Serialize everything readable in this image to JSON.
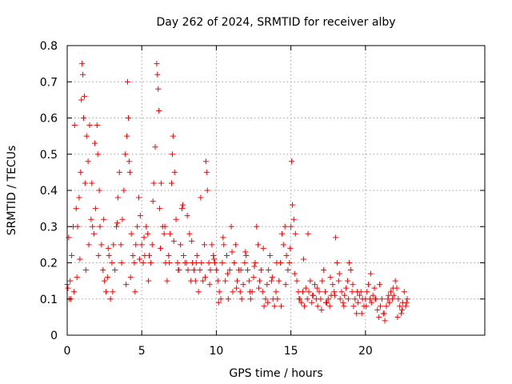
{
  "chart_data": {
    "type": "scatter",
    "title": "Day 262 of 2024, SRMTID for receiver alby",
    "xlabel": "GPS time / hours",
    "ylabel": "SRMTID / TECUs",
    "xlim": [
      0,
      28
    ],
    "ylim": [
      0,
      0.8
    ],
    "xticks": [
      0,
      5,
      10,
      15,
      20
    ],
    "xtick_labels": [
      "0",
      "5",
      "10",
      "15",
      "20"
    ],
    "yticks": [
      0,
      0.1,
      0.2,
      0.3,
      0.4,
      0.5,
      0.6,
      0.7,
      0.8
    ],
    "ytick_labels": [
      "0",
      "0.1",
      "0.2",
      "0.3",
      "0.4",
      "0.5",
      "0.6",
      "0.7",
      "0.8"
    ],
    "grid": true,
    "marker": "+",
    "color": "#ff0000",
    "series": [
      {
        "name": "SRMTID",
        "x": [
          0.0,
          0.1,
          0.15,
          0.2,
          0.3,
          0.4,
          0.5,
          0.6,
          0.7,
          0.8,
          0.9,
          0.95,
          1.0,
          1.05,
          1.1,
          1.15,
          1.2,
          1.3,
          1.4,
          1.5,
          1.6,
          1.7,
          1.8,
          1.9,
          2.0,
          2.05,
          2.1,
          2.2,
          2.3,
          2.4,
          2.5,
          2.6,
          2.7,
          2.8,
          2.9,
          3.0,
          3.1,
          3.2,
          3.3,
          3.4,
          3.5,
          3.6,
          3.7,
          3.8,
          3.9,
          4.0,
          4.05,
          4.1,
          4.15,
          4.2,
          4.3,
          4.4,
          4.5,
          4.6,
          4.7,
          4.8,
          4.9,
          5.0,
          5.1,
          5.2,
          5.3,
          5.4,
          5.5,
          5.6,
          5.7,
          5.8,
          5.9,
          6.0,
          6.05,
          6.1,
          6.15,
          6.2,
          6.3,
          6.4,
          6.5,
          6.6,
          6.7,
          6.8,
          6.9,
          7.0,
          7.05,
          7.1,
          7.2,
          7.3,
          7.4,
          7.5,
          7.6,
          7.7,
          7.8,
          7.9,
          8.0,
          8.1,
          8.2,
          8.3,
          8.4,
          8.5,
          8.6,
          8.7,
          8.8,
          8.9,
          9.0,
          9.1,
          9.2,
          9.3,
          9.35,
          9.4,
          9.5,
          9.6,
          9.7,
          9.8,
          9.9,
          10.0,
          10.1,
          10.2,
          10.3,
          10.4,
          10.5,
          10.6,
          10.7,
          10.8,
          10.9,
          11.0,
          11.1,
          11.2,
          11.3,
          11.4,
          11.5,
          11.6,
          11.7,
          11.8,
          11.9,
          12.0,
          12.1,
          12.2,
          12.3,
          12.4,
          12.5,
          12.6,
          12.7,
          12.8,
          12.9,
          13.0,
          13.1,
          13.2,
          13.3,
          13.4,
          13.5,
          13.6,
          13.7,
          13.8,
          13.9,
          14.0,
          14.1,
          14.2,
          14.3,
          14.4,
          14.5,
          14.6,
          14.7,
          14.8,
          14.9,
          14.95,
          15.0,
          15.05,
          15.1,
          15.2,
          15.3,
          15.4,
          15.5,
          15.6,
          15.7,
          15.8,
          15.9,
          16.0,
          16.1,
          16.2,
          16.3,
          16.4,
          16.5,
          16.6,
          16.7,
          16.8,
          16.9,
          17.0,
          17.1,
          17.2,
          17.3,
          17.4,
          17.5,
          17.6,
          17.7,
          17.8,
          17.9,
          18.0,
          18.1,
          18.2,
          18.3,
          18.4,
          18.5,
          18.6,
          18.7,
          18.8,
          18.9,
          19.0,
          19.1,
          19.2,
          19.3,
          19.4,
          19.5,
          19.6,
          19.7,
          19.8,
          19.9,
          20.0,
          20.1,
          20.2,
          20.3,
          20.4,
          20.5,
          20.6,
          20.7,
          20.8,
          20.9,
          21.0,
          21.1,
          21.2,
          21.3,
          21.4,
          21.5,
          21.6,
          21.7,
          21.8,
          21.9,
          22.0,
          22.1,
          22.2,
          22.3,
          22.4,
          22.5,
          22.6,
          22.7,
          22.8,
          0.05,
          0.25,
          0.45,
          0.65,
          0.85,
          1.25,
          1.45,
          1.65,
          1.85,
          2.15,
          2.45,
          2.75,
          3.05,
          3.35,
          3.65,
          3.95,
          4.25,
          4.55,
          4.85,
          5.15,
          5.45,
          5.75,
          6.25,
          6.55,
          6.85,
          7.15,
          7.45,
          7.75,
          8.05,
          8.35,
          8.65,
          8.95,
          9.25,
          9.55,
          9.85,
          10.15,
          10.45,
          10.75,
          11.05,
          11.35,
          11.65,
          11.95,
          12.25,
          12.55,
          12.85,
          13.15,
          13.45,
          13.75,
          14.05,
          14.35,
          14.65,
          15.25,
          15.55,
          15.85,
          16.15,
          16.45,
          16.75,
          17.05,
          17.35,
          17.65,
          17.95,
          18.25,
          18.55,
          18.85,
          19.15,
          19.45,
          19.75,
          20.05,
          20.35,
          20.65,
          20.95,
          21.25,
          21.55,
          21.85,
          22.15,
          22.45,
          22.75
        ],
        "y": [
          0.14,
          0.27,
          0.1,
          0.15,
          0.22,
          0.3,
          0.58,
          0.35,
          0.3,
          0.38,
          0.45,
          0.65,
          0.75,
          0.72,
          0.6,
          0.66,
          0.42,
          0.55,
          0.48,
          0.58,
          0.32,
          0.3,
          0.28,
          0.35,
          0.58,
          0.5,
          0.22,
          0.3,
          0.25,
          0.18,
          0.15,
          0.12,
          0.16,
          0.22,
          0.1,
          0.2,
          0.25,
          0.18,
          0.3,
          0.38,
          0.45,
          0.25,
          0.32,
          0.4,
          0.5,
          0.55,
          0.7,
          0.6,
          0.48,
          0.45,
          0.28,
          0.22,
          0.2,
          0.25,
          0.3,
          0.38,
          0.33,
          0.25,
          0.2,
          0.22,
          0.3,
          0.28,
          0.22,
          0.2,
          0.25,
          0.42,
          0.52,
          0.75,
          0.72,
          0.68,
          0.62,
          0.35,
          0.42,
          0.3,
          0.28,
          0.2,
          0.15,
          0.22,
          0.28,
          0.42,
          0.5,
          0.55,
          0.45,
          0.32,
          0.2,
          0.18,
          0.25,
          0.35,
          0.22,
          0.2,
          0.2,
          0.18,
          0.28,
          0.15,
          0.2,
          0.18,
          0.15,
          0.22,
          0.12,
          0.18,
          0.2,
          0.15,
          0.25,
          0.48,
          0.45,
          0.4,
          0.2,
          0.18,
          0.25,
          0.22,
          0.2,
          0.18,
          0.15,
          0.12,
          0.1,
          0.2,
          0.25,
          0.15,
          0.22,
          0.1,
          0.18,
          0.3,
          0.12,
          0.2,
          0.25,
          0.15,
          0.18,
          0.12,
          0.1,
          0.14,
          0.2,
          0.22,
          0.18,
          0.15,
          0.1,
          0.12,
          0.16,
          0.2,
          0.3,
          0.25,
          0.15,
          0.18,
          0.12,
          0.08,
          0.1,
          0.14,
          0.18,
          0.22,
          0.15,
          0.1,
          0.08,
          0.12,
          0.1,
          0.15,
          0.2,
          0.28,
          0.25,
          0.3,
          0.22,
          0.18,
          0.2,
          0.24,
          0.3,
          0.48,
          0.36,
          0.32,
          0.28,
          0.15,
          0.12,
          0.1,
          0.09,
          0.12,
          0.08,
          0.13,
          0.1,
          0.12,
          0.15,
          0.09,
          0.11,
          0.14,
          0.1,
          0.08,
          0.12,
          0.1,
          0.15,
          0.18,
          0.12,
          0.09,
          0.1,
          0.08,
          0.11,
          0.14,
          0.12,
          0.27,
          0.2,
          0.15,
          0.1,
          0.12,
          0.09,
          0.11,
          0.13,
          0.15,
          0.2,
          0.18,
          0.12,
          0.08,
          0.1,
          0.06,
          0.09,
          0.11,
          0.12,
          0.1,
          0.08,
          0.1,
          0.12,
          0.14,
          0.1,
          0.09,
          0.11,
          0.13,
          0.1,
          0.07,
          0.05,
          0.08,
          0.1,
          0.06,
          0.04,
          0.08,
          0.1,
          0.09,
          0.12,
          0.1,
          0.11,
          0.15,
          0.13,
          0.1,
          0.08,
          0.06,
          0.09,
          0.12,
          0.08,
          0.1,
          0.13,
          0.1,
          0.12,
          0.16,
          0.21,
          0.18,
          0.25,
          0.42,
          0.53,
          0.4,
          0.32,
          0.24,
          0.12,
          0.31,
          0.2,
          0.14,
          0.16,
          0.12,
          0.21,
          0.27,
          0.15,
          0.37,
          0.24,
          0.3,
          0.2,
          0.26,
          0.18,
          0.36,
          0.33,
          0.26,
          0.2,
          0.38,
          0.16,
          0.14,
          0.21,
          0.09,
          0.27,
          0.17,
          0.23,
          0.13,
          0.18,
          0.23,
          0.12,
          0.19,
          0.13,
          0.24,
          0.09,
          0.16,
          0.2,
          0.08,
          0.14,
          0.17,
          0.1,
          0.21,
          0.28,
          0.11,
          0.13,
          0.07,
          0.09,
          0.16,
          0.11,
          0.17,
          0.08,
          0.1,
          0.14,
          0.12,
          0.06,
          0.08,
          0.17,
          0.1,
          0.14,
          0.06,
          0.11,
          0.13,
          0.05,
          0.07,
          0.09
        ]
      }
    ]
  }
}
